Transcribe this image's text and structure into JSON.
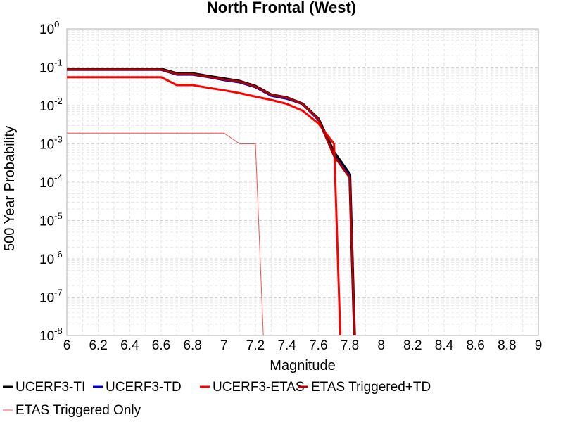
{
  "chart_data": {
    "type": "line",
    "title": "North Frontal  (West)",
    "xlabel": "Magnitude",
    "ylabel": "500 Year Probability",
    "xlim": [
      6,
      9
    ],
    "ylim": [
      1e-08,
      1
    ],
    "yscale": "log",
    "grid": true,
    "legend_position": "bottom",
    "x_ticks": [
      "6",
      "6.2",
      "6.4",
      "6.6",
      "6.8",
      "7",
      "7.2",
      "7.4",
      "7.6",
      "7.8",
      "8",
      "8.2",
      "8.4",
      "8.6",
      "8.8",
      "9"
    ],
    "y_ticks": [
      {
        "base": "10",
        "exp": "0"
      },
      {
        "base": "10",
        "exp": "-1"
      },
      {
        "base": "10",
        "exp": "-2"
      },
      {
        "base": "10",
        "exp": "-3"
      },
      {
        "base": "10",
        "exp": "-4"
      },
      {
        "base": "10",
        "exp": "-5"
      },
      {
        "base": "10",
        "exp": "-6"
      },
      {
        "base": "10",
        "exp": "-7"
      },
      {
        "base": "10",
        "exp": "-8"
      }
    ],
    "series": [
      {
        "name": "UCERF3-TI",
        "color": "#000000",
        "x": [
          6.0,
          6.6,
          6.7,
          6.8,
          6.9,
          7.0,
          7.1,
          7.2,
          7.3,
          7.4,
          7.5,
          7.6,
          7.7,
          7.8,
          7.83
        ],
        "y": [
          0.09,
          0.09,
          0.068,
          0.068,
          0.058,
          0.05,
          0.043,
          0.032,
          0.019,
          0.016,
          0.011,
          0.0045,
          0.0006,
          0.00016,
          1e-09
        ]
      },
      {
        "name": "UCERF3-TD",
        "color": "#0000cc",
        "x": [
          6.0,
          6.6,
          6.7,
          6.8,
          6.9,
          7.0,
          7.1,
          7.2,
          7.3,
          7.4,
          7.5,
          7.6,
          7.7,
          7.8,
          7.83
        ],
        "y": [
          0.085,
          0.085,
          0.064,
          0.064,
          0.055,
          0.046,
          0.04,
          0.03,
          0.018,
          0.015,
          0.011,
          0.0042,
          0.0005,
          0.00014,
          1e-09
        ]
      },
      {
        "name": "UCERF3-ETAS",
        "color": "#ff0000",
        "x": [
          6.0,
          6.6,
          6.7,
          6.8,
          6.9,
          7.0,
          7.1,
          7.2,
          7.3,
          7.4,
          7.5,
          7.6,
          7.7,
          7.74
        ],
        "y": [
          0.055,
          0.055,
          0.034,
          0.034,
          0.029,
          0.025,
          0.021,
          0.017,
          0.014,
          0.011,
          0.0073,
          0.0034,
          0.001,
          1e-09
        ]
      },
      {
        "name": "ETAS Triggered+TD",
        "color": "#b20000",
        "x": [
          6.0,
          6.6,
          6.7,
          6.8,
          6.9,
          7.0,
          7.1,
          7.2,
          7.3,
          7.4,
          7.5,
          7.6,
          7.7,
          7.8,
          7.83
        ],
        "y": [
          0.087,
          0.087,
          0.066,
          0.066,
          0.056,
          0.048,
          0.042,
          0.031,
          0.019,
          0.016,
          0.011,
          0.0044,
          0.00048,
          0.00013,
          1e-09
        ]
      },
      {
        "name": "ETAS Triggered Only",
        "color": "#ff4d4d",
        "x": [
          6.0,
          7.0,
          7.1,
          7.2,
          7.25
        ],
        "y": [
          0.0019,
          0.0019,
          0.001,
          0.001,
          1e-09
        ]
      }
    ]
  }
}
